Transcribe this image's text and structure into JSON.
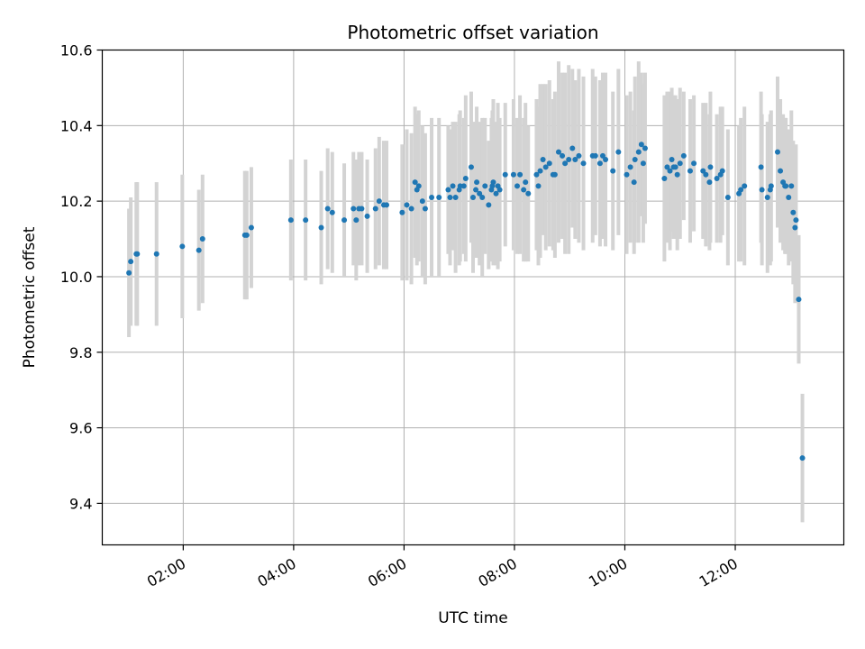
{
  "chart_data": {
    "type": "scatter",
    "title": "Photometric offset variation",
    "xlabel": "UTC time",
    "ylabel": "Photometric offset",
    "xlim": [
      "00:32",
      "13:58"
    ],
    "ylim": [
      9.29,
      10.6
    ],
    "x_ticks": [
      "02:00",
      "04:00",
      "06:00",
      "08:00",
      "10:00",
      "12:00"
    ],
    "y_ticks": [
      "9.4",
      "9.6",
      "9.8",
      "10.0",
      "10.2",
      "10.4",
      "10.6"
    ],
    "grid": true,
    "colors": {
      "point": "#1f77b4",
      "errorbar": "#d3d3d3",
      "grid": "#b0b0b0"
    },
    "series": [
      {
        "x": [
          "01:01",
          "01:03",
          "01:09",
          "01:10",
          "01:31",
          "01:59",
          "02:17",
          "02:21",
          "03:07",
          "03:09",
          "03:14",
          "03:57",
          "04:13",
          "04:30",
          "04:37",
          "04:42",
          "04:55",
          "05:05",
          "05:08",
          "05:11",
          "05:14",
          "05:20",
          "05:29",
          "05:33",
          "05:38",
          "05:41",
          "05:58",
          "06:03",
          "06:08",
          "06:12",
          "06:14",
          "06:16",
          "06:20",
          "06:23",
          "06:30",
          "06:38",
          "06:48",
          "06:50",
          "06:53",
          "06:56",
          "07:00",
          "07:01",
          "07:05",
          "07:07",
          "07:13",
          "07:15",
          "07:18",
          "07:19",
          "07:22",
          "07:25",
          "07:28",
          "07:32",
          "07:35",
          "07:36",
          "07:37",
          "07:40",
          "07:42",
          "07:44",
          "07:50",
          "07:59",
          "08:03",
          "08:06",
          "08:10",
          "08:12",
          "08:15",
          "08:24",
          "08:26",
          "08:28",
          "08:31",
          "08:34",
          "08:38",
          "08:42",
          "08:44",
          "08:48",
          "08:52",
          "08:55",
          "08:59",
          "09:03",
          "09:06",
          "09:10",
          "09:15",
          "09:25",
          "09:28",
          "09:33",
          "09:36",
          "09:39",
          "09:47",
          "09:53",
          "10:02",
          "10:06",
          "10:10",
          "10:11",
          "10:15",
          "10:18",
          "10:20",
          "10:22",
          "10:43",
          "10:46",
          "10:49",
          "10:51",
          "10:53",
          "10:55",
          "10:57",
          "11:00",
          "11:04",
          "11:11",
          "11:15",
          "11:25",
          "11:28",
          "11:32",
          "11:33",
          "11:40",
          "11:44",
          "11:46",
          "11:52",
          "12:04",
          "12:06",
          "12:10",
          "12:28",
          "12:29",
          "12:35",
          "12:38",
          "12:39",
          "12:46",
          "12:49",
          "12:52",
          "12:54",
          "12:55",
          "12:58",
          "13:01",
          "13:03",
          "13:05",
          "13:06",
          "13:09",
          "13:13"
        ],
        "y": [
          10.01,
          10.04,
          10.06,
          10.06,
          10.06,
          10.08,
          10.07,
          10.1,
          10.11,
          10.11,
          10.13,
          10.15,
          10.15,
          10.13,
          10.18,
          10.17,
          10.15,
          10.18,
          10.15,
          10.18,
          10.18,
          10.16,
          10.18,
          10.2,
          10.19,
          10.19,
          10.17,
          10.19,
          10.18,
          10.25,
          10.23,
          10.24,
          10.2,
          10.18,
          10.21,
          10.21,
          10.23,
          10.21,
          10.24,
          10.21,
          10.23,
          10.24,
          10.24,
          10.26,
          10.29,
          10.21,
          10.23,
          10.25,
          10.22,
          10.21,
          10.24,
          10.19,
          10.23,
          10.24,
          10.25,
          10.22,
          10.24,
          10.23,
          10.27,
          10.27,
          10.24,
          10.27,
          10.23,
          10.25,
          10.22,
          10.27,
          10.24,
          10.28,
          10.31,
          10.29,
          10.3,
          10.27,
          10.27,
          10.33,
          10.32,
          10.3,
          10.31,
          10.34,
          10.31,
          10.32,
          10.3,
          10.32,
          10.32,
          10.3,
          10.32,
          10.31,
          10.28,
          10.33,
          10.27,
          10.29,
          10.25,
          10.31,
          10.33,
          10.35,
          10.3,
          10.34,
          10.26,
          10.29,
          10.28,
          10.31,
          10.29,
          10.29,
          10.27,
          10.3,
          10.32,
          10.28,
          10.3,
          10.28,
          10.27,
          10.25,
          10.29,
          10.26,
          10.27,
          10.28,
          10.21,
          10.22,
          10.23,
          10.24,
          10.29,
          10.23,
          10.21,
          10.23,
          10.24,
          10.33,
          10.28,
          10.25,
          10.24,
          10.24,
          10.21,
          10.24,
          10.17,
          10.13,
          10.15,
          9.94,
          9.52
        ],
        "err": [
          0.17,
          0.17,
          0.19,
          0.19,
          0.19,
          0.19,
          0.16,
          0.17,
          0.17,
          0.17,
          0.16,
          0.16,
          0.16,
          0.15,
          0.16,
          0.16,
          0.15,
          0.15,
          0.16,
          0.15,
          0.15,
          0.15,
          0.16,
          0.17,
          0.17,
          0.17,
          0.18,
          0.2,
          0.2,
          0.2,
          0.2,
          0.2,
          0.2,
          0.2,
          0.21,
          0.21,
          0.17,
          0.18,
          0.17,
          0.2,
          0.2,
          0.2,
          0.18,
          0.22,
          0.2,
          0.2,
          0.18,
          0.2,
          0.19,
          0.21,
          0.18,
          0.17,
          0.19,
          0.2,
          0.22,
          0.19,
          0.22,
          0.19,
          0.19,
          0.2,
          0.18,
          0.21,
          0.19,
          0.21,
          0.18,
          0.2,
          0.21,
          0.23,
          0.2,
          0.22,
          0.22,
          0.2,
          0.22,
          0.24,
          0.22,
          0.24,
          0.25,
          0.21,
          0.21,
          0.23,
          0.23,
          0.23,
          0.21,
          0.22,
          0.22,
          0.23,
          0.21,
          0.22,
          0.21,
          0.2,
          0.19,
          0.22,
          0.24,
          0.19,
          0.21,
          0.2,
          0.22,
          0.2,
          0.21,
          0.19,
          0.19,
          0.19,
          0.2,
          0.2,
          0.17,
          0.19,
          0.18,
          0.18,
          0.19,
          0.18,
          0.2,
          0.17,
          0.18,
          0.17,
          0.18,
          0.18,
          0.19,
          0.21,
          0.2,
          0.2,
          0.2,
          0.2,
          0.2,
          0.2,
          0.19,
          0.18,
          0.18,
          0.18,
          0.18,
          0.2,
          0.19,
          0.2,
          0.2,
          0.17,
          0.17
        ]
      }
    ]
  }
}
